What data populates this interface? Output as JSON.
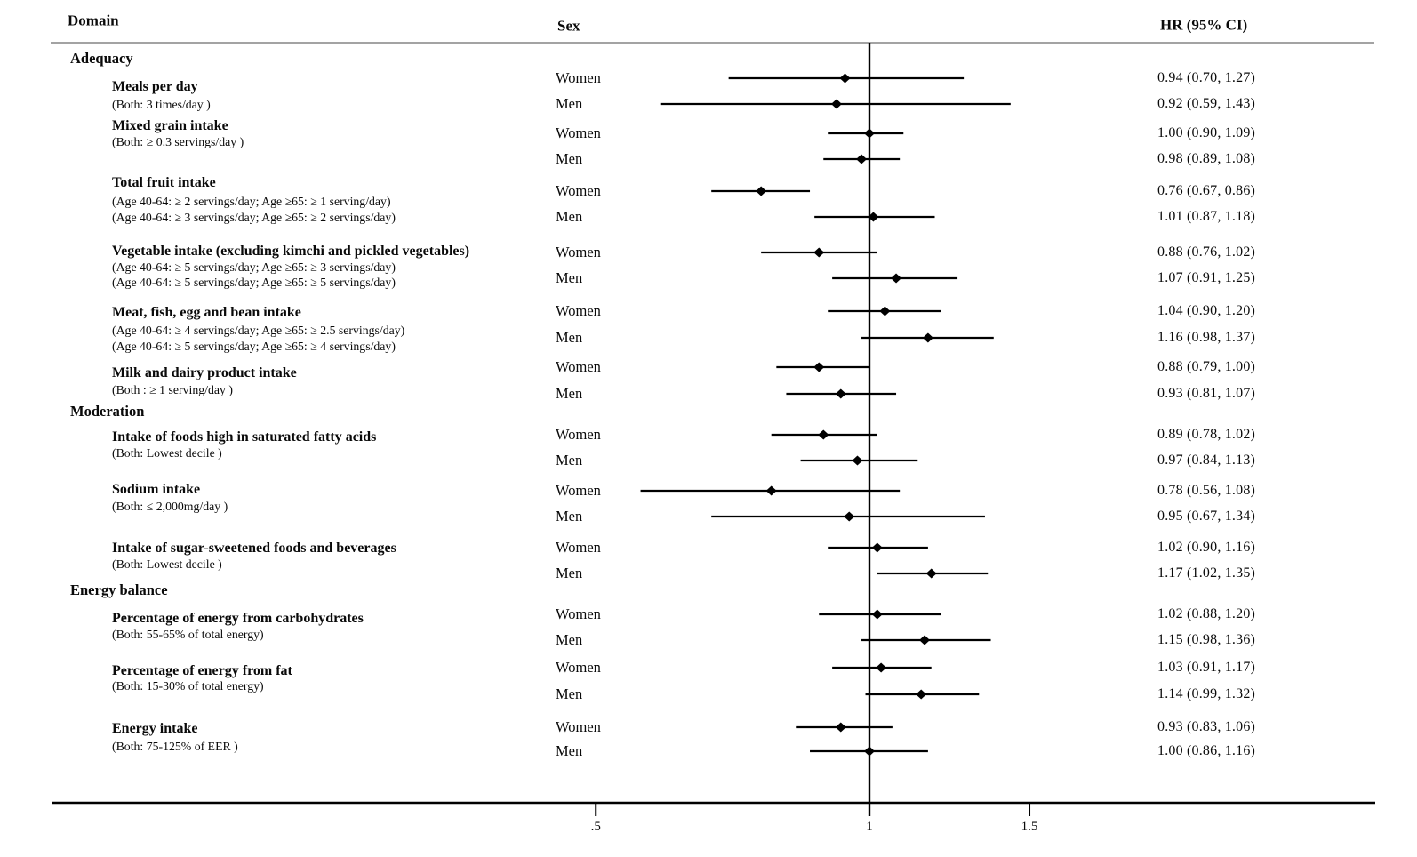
{
  "columns": {
    "domain": "Domain",
    "sex": "Sex",
    "hr": "HR (95% CI)"
  },
  "chart_data": {
    "type": "forest",
    "title": "",
    "x_axis": {
      "scale": "log",
      "ref_value": 1,
      "ticks": [
        {
          "label": ".5",
          "value": 0.5
        },
        {
          "label": "1",
          "value": 1.0
        },
        {
          "label": "1.5",
          "value": 1.5
        }
      ]
    },
    "marker": "black-diamond",
    "colors": {
      "text": "#0a0a0a",
      "line": "#000000",
      "header_rule": "#a3a3a3",
      "background": "#ffffff"
    },
    "groups": [
      {
        "name": "Adequacy",
        "items": [
          {
            "title": "Meals per day",
            "criteria": [
              "(Both: 3 times/day )"
            ],
            "rows": [
              {
                "sex": "Women",
                "hr": 0.94,
                "ci_low": 0.7,
                "ci_high": 1.27,
                "hr_text": "0.94 (0.70, 1.27)"
              },
              {
                "sex": "Men",
                "hr": 0.92,
                "ci_low": 0.59,
                "ci_high": 1.43,
                "hr_text": "0.92 (0.59, 1.43)"
              }
            ]
          },
          {
            "title": "Mixed grain intake",
            "criteria": [
              "(Both: ≥ 0.3 servings/day )"
            ],
            "rows": [
              {
                "sex": "Women",
                "hr": 1.0,
                "ci_low": 0.9,
                "ci_high": 1.09,
                "hr_text": "1.00 (0.90, 1.09)"
              },
              {
                "sex": "Men",
                "hr": 0.98,
                "ci_low": 0.89,
                "ci_high": 1.08,
                "hr_text": "0.98 (0.89, 1.08)"
              }
            ]
          },
          {
            "title": "Total fruit intake",
            "criteria": [
              "(Age 40-64: ≥ 2 servings/day; Age ≥65: ≥ 1 serving/day)",
              "(Age 40-64: ≥ 3 servings/day; Age ≥65: ≥ 2 servings/day)"
            ],
            "rows": [
              {
                "sex": "Women",
                "hr": 0.76,
                "ci_low": 0.67,
                "ci_high": 0.86,
                "hr_text": "0.76 (0.67, 0.86)"
              },
              {
                "sex": "Men",
                "hr": 1.01,
                "ci_low": 0.87,
                "ci_high": 1.18,
                "hr_text": "1.01 (0.87, 1.18)"
              }
            ]
          },
          {
            "title": "Vegetable intake (excluding kimchi and pickled vegetables)",
            "criteria": [
              "(Age 40-64: ≥ 5 servings/day; Age ≥65: ≥ 3 servings/day)",
              "(Age 40-64: ≥ 5 servings/day; Age ≥65: ≥ 5 servings/day)"
            ],
            "rows": [
              {
                "sex": "Women",
                "hr": 0.88,
                "ci_low": 0.76,
                "ci_high": 1.02,
                "hr_text": "0.88 (0.76, 1.02)"
              },
              {
                "sex": "Men",
                "hr": 1.07,
                "ci_low": 0.91,
                "ci_high": 1.25,
                "hr_text": "1.07 (0.91, 1.25)"
              }
            ]
          },
          {
            "title": "Meat, fish, egg and bean intake",
            "criteria": [
              "(Age 40-64: ≥ 4 servings/day; Age ≥65: ≥ 2.5 servings/day)",
              "(Age 40-64: ≥ 5 servings/day; Age ≥65: ≥ 4 servings/day)"
            ],
            "rows": [
              {
                "sex": "Women",
                "hr": 1.04,
                "ci_low": 0.9,
                "ci_high": 1.2,
                "hr_text": "1.04 (0.90, 1.20)"
              },
              {
                "sex": "Men",
                "hr": 1.16,
                "ci_low": 0.98,
                "ci_high": 1.37,
                "hr_text": "1.16 (0.98, 1.37)"
              }
            ]
          },
          {
            "title": "Milk and dairy product intake",
            "criteria": [
              "(Both : ≥ 1 serving/day )"
            ],
            "rows": [
              {
                "sex": "Women",
                "hr": 0.88,
                "ci_low": 0.79,
                "ci_high": 1.0,
                "hr_text": "0.88 (0.79, 1.00)"
              },
              {
                "sex": "Men",
                "hr": 0.93,
                "ci_low": 0.81,
                "ci_high": 1.07,
                "hr_text": "0.93 (0.81, 1.07)"
              }
            ]
          }
        ]
      },
      {
        "name": "Moderation",
        "items": [
          {
            "title": "Intake of foods high in saturated fatty acids",
            "criteria": [
              "(Both: Lowest decile )"
            ],
            "rows": [
              {
                "sex": "Women",
                "hr": 0.89,
                "ci_low": 0.78,
                "ci_high": 1.02,
                "hr_text": "0.89 (0.78, 1.02)"
              },
              {
                "sex": "Men",
                "hr": 0.97,
                "ci_low": 0.84,
                "ci_high": 1.13,
                "hr_text": "0.97 (0.84, 1.13)"
              }
            ]
          },
          {
            "title": "Sodium intake",
            "criteria": [
              "(Both: ≤ 2,000mg/day )"
            ],
            "rows": [
              {
                "sex": "Women",
                "hr": 0.78,
                "ci_low": 0.56,
                "ci_high": 1.08,
                "hr_text": "0.78 (0.56, 1.08)"
              },
              {
                "sex": "Men",
                "hr": 0.95,
                "ci_low": 0.67,
                "ci_high": 1.34,
                "hr_text": "0.95 (0.67, 1.34)"
              }
            ]
          },
          {
            "title": "Intake of sugar-sweetened foods and beverages",
            "criteria": [
              "(Both: Lowest decile )"
            ],
            "rows": [
              {
                "sex": "Women",
                "hr": 1.02,
                "ci_low": 0.9,
                "ci_high": 1.16,
                "hr_text": "1.02 (0.90, 1.16)"
              },
              {
                "sex": "Men",
                "hr": 1.17,
                "ci_low": 1.02,
                "ci_high": 1.35,
                "hr_text": "1.17 (1.02, 1.35)"
              }
            ]
          }
        ]
      },
      {
        "name": "Energy balance",
        "items": [
          {
            "title": "Percentage of energy from carbohydrates",
            "criteria": [
              "(Both: 55-65% of total energy)"
            ],
            "rows": [
              {
                "sex": "Women",
                "hr": 1.02,
                "ci_low": 0.88,
                "ci_high": 1.2,
                "hr_text": "1.02 (0.88, 1.20)"
              },
              {
                "sex": "Men",
                "hr": 1.15,
                "ci_low": 0.98,
                "ci_high": 1.36,
                "hr_text": "1.15 (0.98, 1.36)"
              }
            ]
          },
          {
            "title": "Percentage of energy from fat",
            "criteria": [
              "(Both: 15-30% of total energy)"
            ],
            "rows": [
              {
                "sex": "Women",
                "hr": 1.03,
                "ci_low": 0.91,
                "ci_high": 1.17,
                "hr_text": "1.03 (0.91, 1.17)"
              },
              {
                "sex": "Men",
                "hr": 1.14,
                "ci_low": 0.99,
                "ci_high": 1.32,
                "hr_text": "1.14 (0.99, 1.32)"
              }
            ]
          },
          {
            "title": "Energy intake",
            "criteria": [
              "(Both: 75-125% of EER )"
            ],
            "rows": [
              {
                "sex": "Women",
                "hr": 0.93,
                "ci_low": 0.83,
                "ci_high": 1.06,
                "hr_text": "0.93 (0.83, 1.06)"
              },
              {
                "sex": "Men",
                "hr": 1.0,
                "ci_low": 0.86,
                "ci_high": 1.16,
                "hr_text": "1.00 (0.86, 1.16)"
              }
            ]
          }
        ]
      }
    ]
  }
}
